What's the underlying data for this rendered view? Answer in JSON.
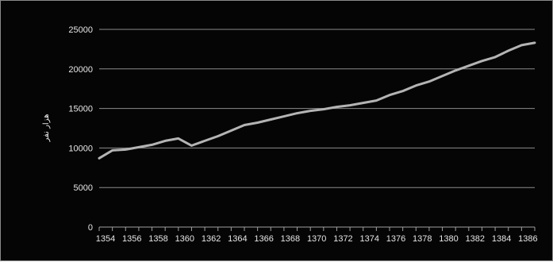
{
  "chart_data": {
    "type": "line",
    "title": "",
    "xlabel": "",
    "ylabel": "هزار نفر",
    "x": [
      1354,
      1355,
      1356,
      1357,
      1358,
      1359,
      1360,
      1361,
      1362,
      1363,
      1364,
      1365,
      1366,
      1367,
      1368,
      1369,
      1370,
      1371,
      1372,
      1373,
      1374,
      1375,
      1376,
      1377,
      1378,
      1379,
      1380,
      1381,
      1382,
      1383,
      1384,
      1385,
      1386,
      1387
    ],
    "series": [
      {
        "values": [
          8700,
          9700,
          9800,
          10100,
          10400,
          10900,
          11200,
          10300,
          10900,
          11500,
          12200,
          12900,
          13200,
          13600,
          14000,
          14400,
          14700,
          14900,
          15200,
          15400,
          15700,
          16000,
          16700,
          17200,
          17900,
          18400,
          19100,
          19800,
          20400,
          21000,
          21500,
          22300,
          23000,
          23300
        ]
      }
    ],
    "xticks": [
      "1354",
      "1356",
      "1358",
      "1360",
      "1362",
      "1364",
      "1366",
      "1368",
      "1370",
      "1372",
      "1374",
      "1376",
      "1378",
      "1380",
      "1382",
      "1384",
      "1386"
    ],
    "yticks": [
      "0",
      "5000",
      "10000",
      "15000",
      "20000",
      "25000"
    ],
    "ylim": [
      0,
      25000
    ],
    "xlim": [
      1354,
      1387
    ],
    "grid": true,
    "legend": "none",
    "colors": {
      "background": "#050505",
      "line": "#b4b4b4",
      "grid": "#8c8c8c",
      "text": "#e6e6e6"
    }
  }
}
